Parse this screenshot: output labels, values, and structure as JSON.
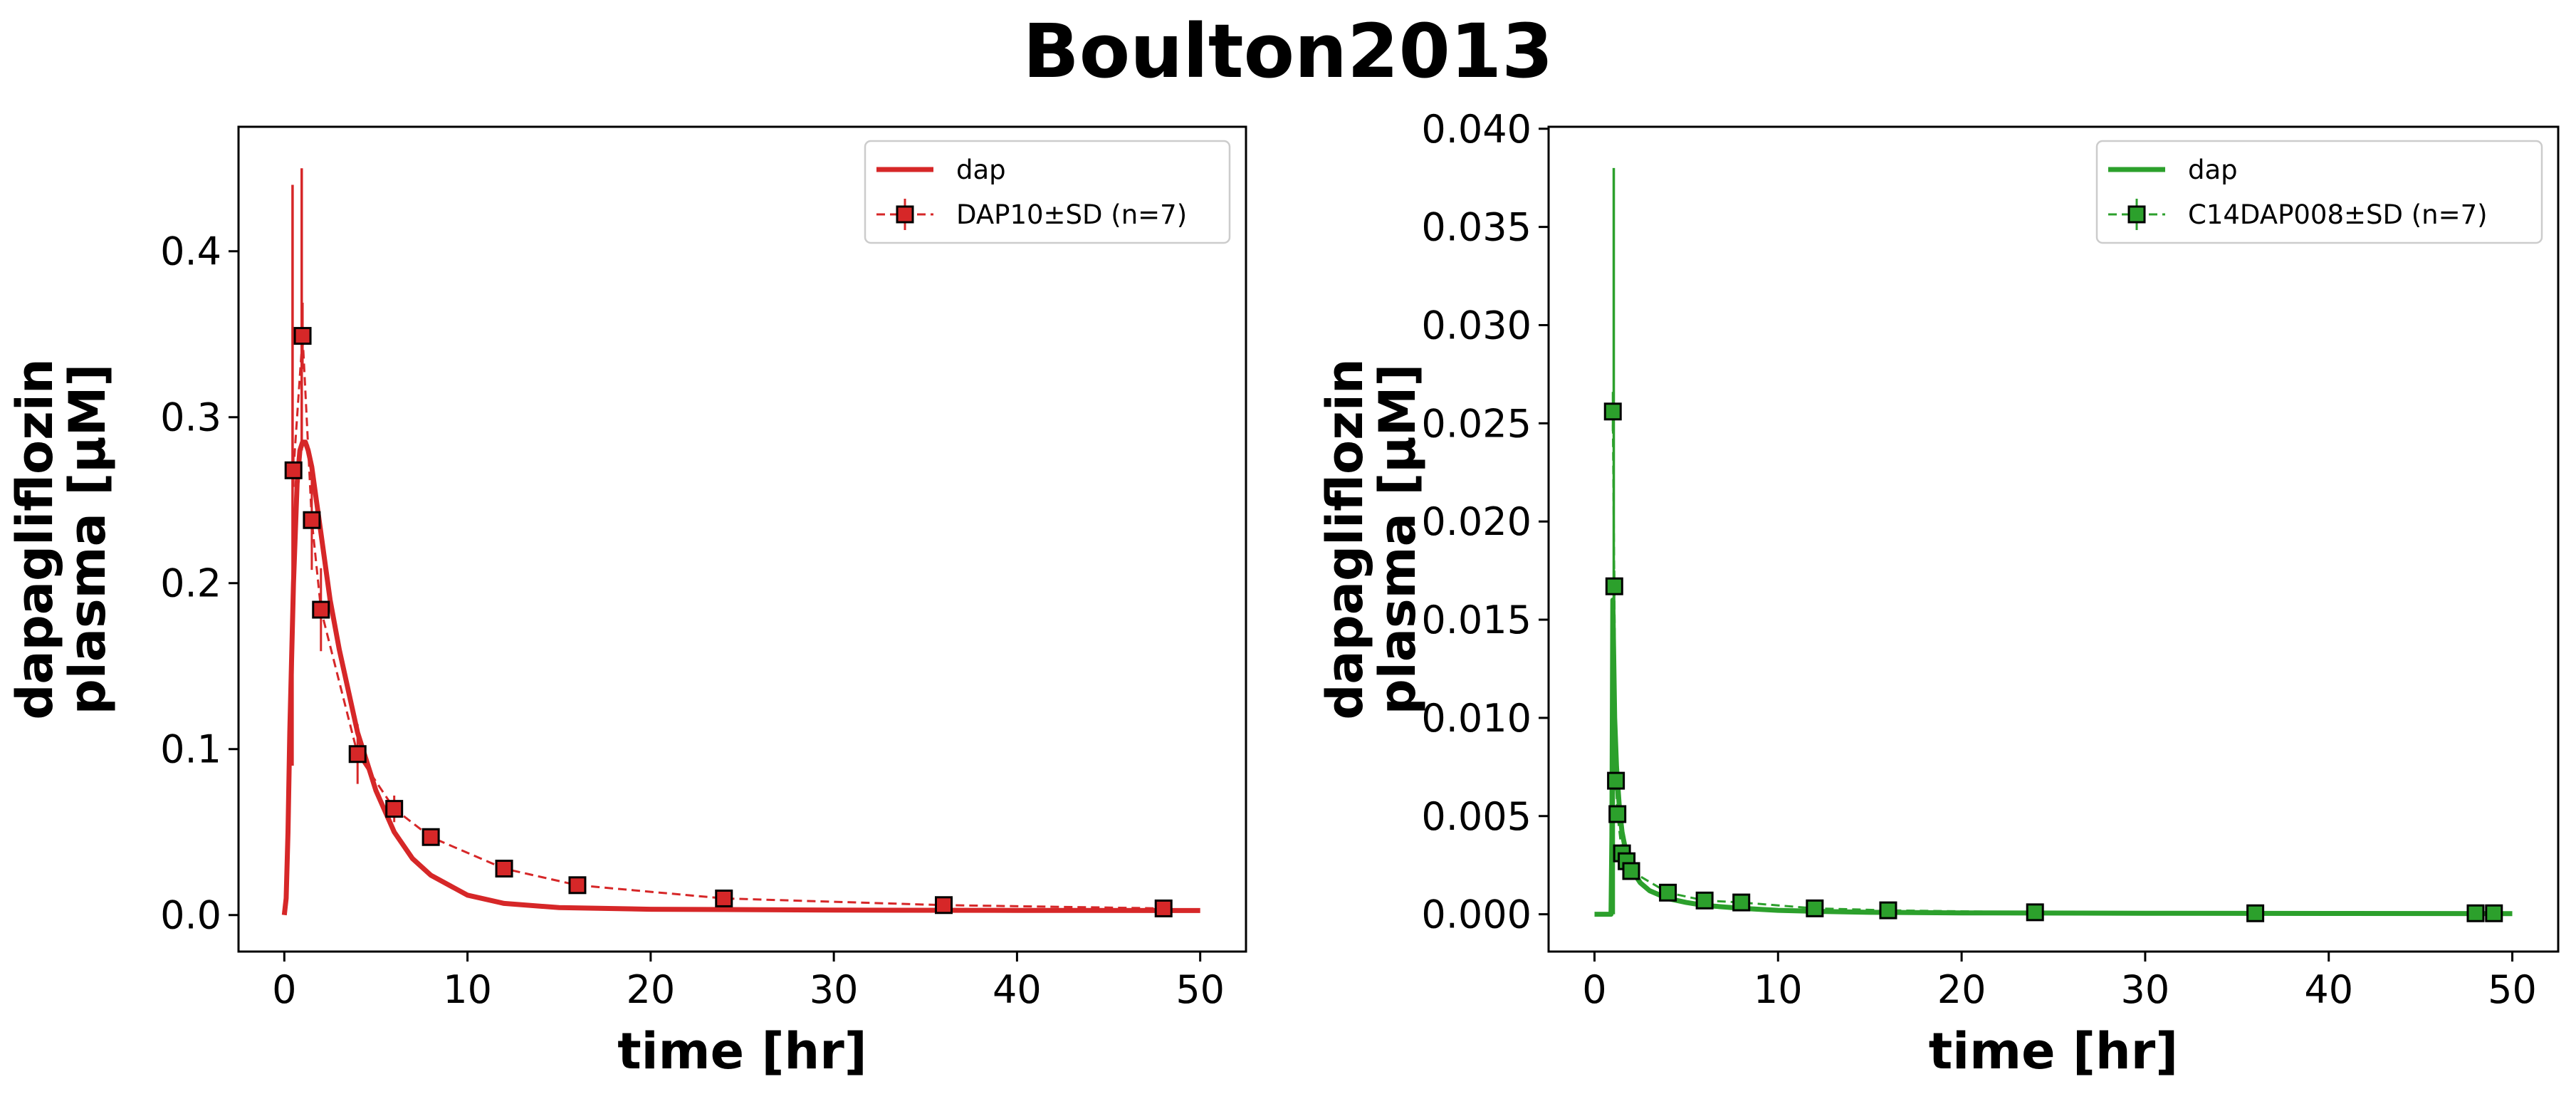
{
  "figure": {
    "title": "Boulton2013"
  },
  "chart_data": [
    {
      "type": "line",
      "xlabel": "time [hr]",
      "ylabel_lines": [
        "dapagliflozin",
        "plasma [µM]"
      ],
      "xlim": [
        -2.5,
        52.5
      ],
      "ylim": [
        -0.022,
        0.475
      ],
      "xticks": [
        0,
        10,
        20,
        30,
        40,
        50
      ],
      "yticks": [
        0.0,
        0.1,
        0.2,
        0.3,
        0.4
      ],
      "ytick_labels": [
        "0.0",
        "0.1",
        "0.2",
        "0.3",
        "0.4"
      ],
      "grid": false,
      "legend_position": "top-right",
      "color": "#d62728",
      "model": {
        "name": "dap",
        "x": [
          0,
          0.1,
          0.2,
          0.3,
          0.5,
          0.7,
          0.85,
          1.0,
          1.15,
          1.3,
          1.5,
          1.75,
          2.0,
          2.5,
          3,
          4,
          5,
          6,
          7,
          8,
          10,
          12,
          15,
          20,
          25,
          30,
          40,
          50
        ],
        "y": [
          0.0,
          0.01,
          0.05,
          0.11,
          0.2,
          0.26,
          0.28,
          0.285,
          0.285,
          0.28,
          0.27,
          0.25,
          0.23,
          0.19,
          0.16,
          0.11,
          0.075,
          0.05,
          0.034,
          0.024,
          0.012,
          0.007,
          0.0045,
          0.0035,
          0.0033,
          0.003,
          0.0028,
          0.0027
        ],
        "spikes": [
          {
            "x": 0.45,
            "ymin": 0.09,
            "ymax": 0.44
          },
          {
            "x": 0.95,
            "ymin": 0.28,
            "ymax": 0.45
          }
        ]
      },
      "observed": {
        "name": "DAP10±SD (n=7)",
        "x": [
          0.5,
          1.0,
          1.5,
          2.0,
          4.0,
          6.0,
          8.0,
          12.0,
          16.0,
          24.0,
          36.0,
          48.0
        ],
        "y": [
          0.268,
          0.349,
          0.238,
          0.184,
          0.097,
          0.064,
          0.047,
          0.028,
          0.018,
          0.01,
          0.006,
          0.004
        ],
        "sd": [
          0.01,
          0.02,
          0.03,
          0.025,
          0.018,
          0.008,
          0.005,
          0.004,
          0.003,
          0.002,
          0.001,
          0.001
        ]
      }
    },
    {
      "type": "line",
      "xlabel": "time [hr]",
      "ylabel_lines": [
        "dapagliflozin",
        "plasma [µM]"
      ],
      "xlim": [
        -2.5,
        52.5
      ],
      "ylim": [
        -0.0019,
        0.0401
      ],
      "xticks": [
        0,
        10,
        20,
        30,
        40,
        50
      ],
      "yticks": [
        0.0,
        0.005,
        0.01,
        0.015,
        0.02,
        0.025,
        0.03,
        0.035,
        0.04
      ],
      "ytick_labels": [
        "0.000",
        "0.005",
        "0.010",
        "0.015",
        "0.020",
        "0.025",
        "0.030",
        "0.035",
        "0.040"
      ],
      "grid": false,
      "legend_position": "top-right",
      "color": "#2ca02c",
      "model": {
        "name": "dap",
        "x": [
          0,
          0.9,
          0.95,
          1.0,
          1.05,
          1.1,
          1.2,
          1.35,
          1.5,
          1.75,
          2.0,
          2.5,
          3,
          4,
          5,
          6,
          8,
          10,
          12,
          15,
          20,
          30,
          40,
          50
        ],
        "y": [
          0.0,
          0.0,
          0.004,
          0.016,
          0.013,
          0.01,
          0.0075,
          0.0055,
          0.0042,
          0.003,
          0.0023,
          0.0016,
          0.0012,
          0.0008,
          0.0006,
          0.00045,
          0.0003,
          0.0002,
          0.00015,
          0.0001,
          7e-05,
          5e-05,
          4e-05,
          3e-05
        ],
        "spikes": [
          {
            "x": 1.05,
            "ymin": 0.0,
            "ymax": 0.038
          }
        ]
      },
      "observed": {
        "name": "C14DAP008±SD (n=7)",
        "x": [
          1.0,
          1.08,
          1.17,
          1.25,
          1.5,
          1.75,
          2.0,
          4.0,
          6.0,
          8.0,
          12.0,
          16.0,
          24.0,
          36.0,
          48.0,
          49.0
        ],
        "y": [
          0.0256,
          0.0167,
          0.0068,
          0.0051,
          0.0031,
          0.0027,
          0.0022,
          0.0011,
          0.0007,
          0.0006,
          0.0003,
          0.0002,
          0.0001,
          5e-05,
          5e-05,
          5e-05
        ],
        "sd": [
          0.001,
          0.0008,
          0.0005,
          0.0004,
          0.0003,
          0.0003,
          0.0003,
          0.0002,
          0.0001,
          0.0001,
          5e-05,
          5e-05,
          3e-05,
          2e-05,
          2e-05,
          2e-05
        ]
      }
    }
  ]
}
